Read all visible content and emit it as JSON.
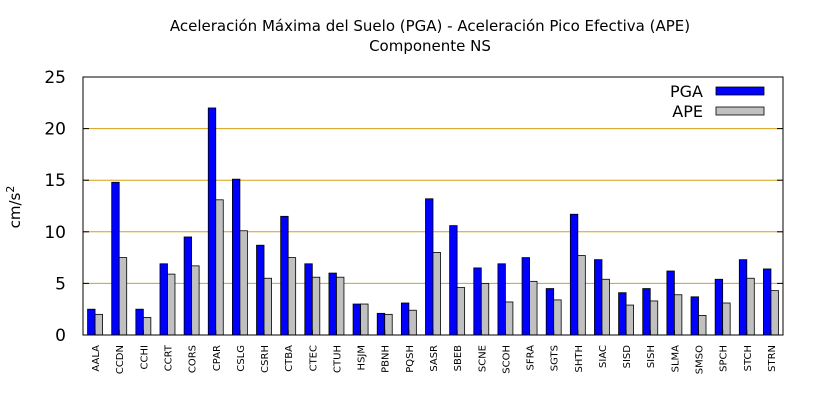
{
  "chart_data": {
    "type": "bar",
    "title": "Aceleración Máxima del Suelo (PGA) -  Aceleración Pico Efectiva (APE)",
    "subtitle": "Componente NS",
    "ylabel": "cm/s",
    "ylabel_exponent": "2",
    "ylim": [
      0,
      25
    ],
    "yticks": [
      0,
      5,
      10,
      15,
      20,
      25
    ],
    "grid": true,
    "legend_position": "top-right",
    "categories": [
      "AALA",
      "CCDN",
      "CCHI",
      "CCRT",
      "CORS",
      "CPAR",
      "CSLG",
      "CSRH",
      "CTBA",
      "CTEC",
      "CTUH",
      "HSJM",
      "PBNH",
      "PQSH",
      "SASR",
      "SBEB",
      "SCNE",
      "SCOH",
      "SFRA",
      "SGTS",
      "SHTH",
      "SIAC",
      "SISD",
      "SISH",
      "SLMA",
      "SMSO",
      "SPCH",
      "STCH",
      "STRN"
    ],
    "series": [
      {
        "name": "PGA",
        "color": "#0000ff",
        "values": [
          2.5,
          14.8,
          2.5,
          6.9,
          9.5,
          22.0,
          15.1,
          8.7,
          11.5,
          6.9,
          6.0,
          3.0,
          2.1,
          3.1,
          13.2,
          10.6,
          6.5,
          6.9,
          7.5,
          4.5,
          11.7,
          7.3,
          4.1,
          4.5,
          6.2,
          3.7,
          5.4,
          7.3,
          6.4
        ]
      },
      {
        "name": "APE",
        "color": "#c0c0c0",
        "values": [
          2.0,
          7.5,
          1.7,
          5.9,
          6.7,
          13.1,
          10.1,
          5.5,
          7.5,
          5.6,
          5.6,
          3.0,
          2.0,
          2.4,
          8.0,
          4.6,
          5.0,
          3.2,
          5.2,
          3.4,
          7.7,
          5.4,
          2.9,
          3.3,
          3.9,
          1.9,
          3.1,
          5.5,
          4.3
        ]
      }
    ]
  }
}
